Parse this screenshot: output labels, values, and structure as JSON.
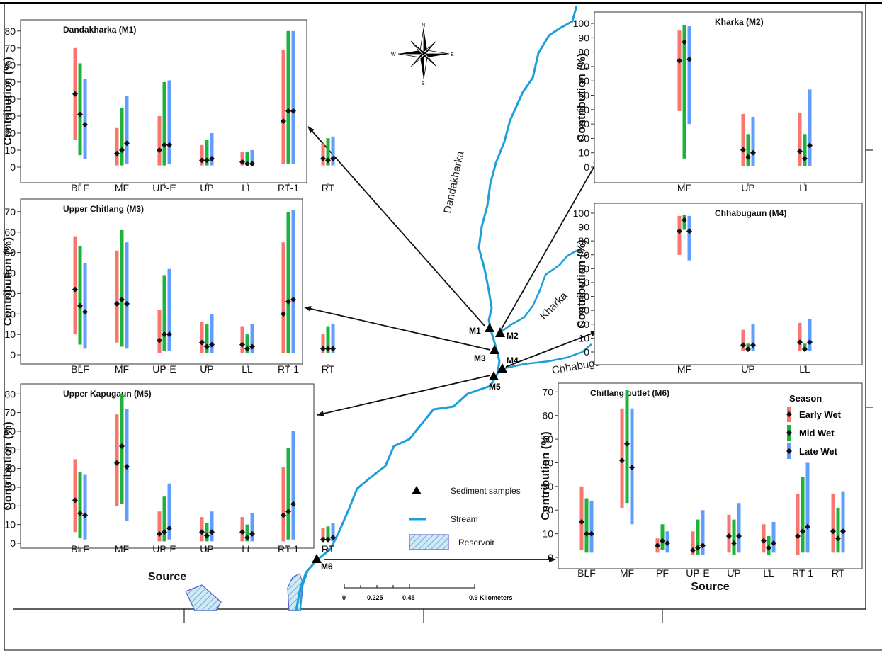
{
  "colors": {
    "early": "#F8766D",
    "mid": "#1DB33B",
    "late": "#619CFF",
    "stream": "#1A9FD9",
    "reservoir": "#5566CC",
    "point": "#111111"
  },
  "map": {
    "streams": [
      "Dandakharka",
      "Kharka",
      "Chhabugaun"
    ],
    "sites": [
      "M1",
      "M2",
      "M3",
      "M4",
      "M5",
      "M6"
    ],
    "compass": {
      "n": "N",
      "s": "S",
      "e": "E",
      "w": "W"
    },
    "scale": {
      "ticks": [
        "0",
        "0.225",
        "0.45",
        "0.9 Kilometers"
      ]
    },
    "legend": {
      "samples": "Sediment samples",
      "stream": "Stream",
      "reservoir": "Reservoir"
    }
  },
  "legend": {
    "title": "Season",
    "items": [
      "Early Wet",
      "Mid Wet",
      "Late Wet"
    ]
  },
  "chart_data": [
    {
      "id": "m1",
      "type": "bar-range",
      "title": "Dandakharka (M1)",
      "ylabel": "Contribution (%)",
      "xlabel": "",
      "ylim": [
        0,
        82
      ],
      "yticks": [
        0,
        10,
        20,
        30,
        40,
        50,
        60,
        70,
        80
      ],
      "categories": [
        "BLF",
        "MF",
        "UP-E",
        "UP",
        "LL",
        "RT-1",
        "RT"
      ],
      "series": [
        {
          "name": "Early Wet",
          "low": [
            16,
            1,
            1,
            1,
            1,
            2,
            1
          ],
          "high": [
            70,
            23,
            30,
            13,
            9,
            69,
            14
          ],
          "median": [
            43,
            8,
            10,
            4,
            3,
            27,
            5
          ]
        },
        {
          "name": "Mid Wet",
          "low": [
            7,
            1,
            1,
            1,
            1,
            2,
            1
          ],
          "high": [
            61,
            35,
            50,
            16,
            9,
            80,
            17
          ],
          "median": [
            31,
            10,
            13,
            4,
            2,
            33,
            4
          ]
        },
        {
          "name": "Late Wet",
          "low": [
            5,
            2,
            2,
            1,
            1,
            2,
            1
          ],
          "high": [
            52,
            42,
            51,
            20,
            10,
            80,
            18
          ],
          "median": [
            25,
            14,
            13,
            5,
            2,
            33,
            5
          ]
        }
      ]
    },
    {
      "id": "m2",
      "type": "bar-range",
      "title": "Kharka (M2)",
      "ylabel": "Contribution (%)",
      "xlabel": "",
      "ylim": [
        0,
        101
      ],
      "yticks": [
        0,
        10,
        20,
        30,
        40,
        50,
        60,
        70,
        80,
        90,
        100
      ],
      "categories": [
        "MF",
        "UP",
        "LL"
      ],
      "series": [
        {
          "name": "Early Wet",
          "low": [
            39,
            1,
            1
          ],
          "high": [
            95,
            37,
            38
          ],
          "median": [
            74,
            12,
            11
          ]
        },
        {
          "name": "Mid Wet",
          "low": [
            6,
            1,
            1
          ],
          "high": [
            99,
            23,
            23
          ],
          "median": [
            87,
            7,
            6
          ]
        },
        {
          "name": "Late Wet",
          "low": [
            30,
            1,
            1
          ],
          "high": [
            98,
            35,
            54
          ],
          "median": [
            75,
            10,
            15
          ]
        }
      ]
    },
    {
      "id": "m3",
      "type": "bar-range",
      "title": "Upper Chitlang (M3)",
      "ylabel": "Contribution (%)",
      "xlabel": "",
      "ylim": [
        0,
        71
      ],
      "yticks": [
        0,
        10,
        20,
        30,
        40,
        50,
        60,
        70
      ],
      "categories": [
        "BLF",
        "MF",
        "UP-E",
        "UP",
        "LL",
        "RT-1",
        "RT"
      ],
      "series": [
        {
          "name": "Early Wet",
          "low": [
            10,
            6,
            1,
            1,
            1,
            1,
            1
          ],
          "high": [
            58,
            51,
            22,
            16,
            14,
            55,
            10
          ],
          "median": [
            32,
            25,
            7,
            6,
            5,
            20,
            3
          ]
        },
        {
          "name": "Mid Wet",
          "low": [
            5,
            4,
            2,
            1,
            1,
            1,
            1
          ],
          "high": [
            53,
            61,
            39,
            15,
            10,
            70,
            14
          ],
          "median": [
            24,
            27,
            10,
            4,
            3,
            26,
            3
          ]
        },
        {
          "name": "Late Wet",
          "low": [
            3,
            3,
            2,
            1,
            1,
            1,
            1
          ],
          "high": [
            45,
            55,
            42,
            20,
            15,
            71,
            15
          ],
          "median": [
            21,
            25,
            10,
            5,
            4,
            27,
            3
          ]
        }
      ]
    },
    {
      "id": "m4",
      "type": "bar-range",
      "title": "Chhabugaun (M4)",
      "ylabel": "Contribution (%)",
      "xlabel": "",
      "ylim": [
        0,
        101
      ],
      "yticks": [
        0,
        10,
        20,
        30,
        40,
        50,
        60,
        70,
        80,
        90,
        100
      ],
      "categories": [
        "MF",
        "UP",
        "LL"
      ],
      "series": [
        {
          "name": "Early Wet",
          "low": [
            70,
            1,
            1
          ],
          "high": [
            98,
            16,
            21
          ],
          "median": [
            87,
            5,
            7
          ]
        },
        {
          "name": "Mid Wet",
          "low": [
            88,
            1,
            1
          ],
          "high": [
            99,
            6,
            6
          ],
          "median": [
            95,
            2,
            2
          ]
        },
        {
          "name": "Late Wet",
          "low": [
            66,
            1,
            1
          ],
          "high": [
            98,
            20,
            24
          ],
          "median": [
            87,
            5,
            7
          ]
        }
      ]
    },
    {
      "id": "m5",
      "type": "bar-range",
      "title": "Upper Kapugaun (M5)",
      "ylabel": "Contribution (%)",
      "xlabel": "Source",
      "ylim": [
        0,
        82
      ],
      "yticks": [
        0,
        10,
        20,
        30,
        40,
        50,
        60,
        70,
        80
      ],
      "categories": [
        "BLF",
        "MF",
        "UP-E",
        "UP",
        "LL",
        "RT-1",
        "RT"
      ],
      "series": [
        {
          "name": "Early Wet",
          "low": [
            6,
            20,
            1,
            1,
            1,
            1,
            1
          ],
          "high": [
            45,
            69,
            17,
            14,
            14,
            41,
            8
          ],
          "median": [
            23,
            43,
            5,
            6,
            6,
            15,
            2
          ]
        },
        {
          "name": "Mid Wet",
          "low": [
            3,
            21,
            1,
            1,
            1,
            2,
            1
          ],
          "high": [
            38,
            80,
            25,
            11,
            10,
            51,
            9
          ],
          "median": [
            16,
            52,
            6,
            4,
            3,
            17,
            2
          ]
        },
        {
          "name": "Late Wet",
          "low": [
            2,
            12,
            2,
            1,
            1,
            2,
            1
          ],
          "high": [
            37,
            72,
            32,
            17,
            16,
            60,
            11
          ],
          "median": [
            15,
            41,
            8,
            6,
            5,
            21,
            3
          ]
        }
      ]
    },
    {
      "id": "m6",
      "type": "bar-range",
      "title": "Chitlang  outlet (M6)",
      "ylabel": "Contribution (%)",
      "xlabel": "Source",
      "ylim": [
        0,
        71
      ],
      "yticks": [
        0,
        10,
        20,
        30,
        40,
        50,
        60,
        70
      ],
      "categories": [
        "BLF",
        "MF",
        "PF",
        "UP-E",
        "UP",
        "LL",
        "RT-1",
        "RT"
      ],
      "series": [
        {
          "name": "Early Wet",
          "low": [
            3,
            21,
            2,
            1,
            2,
            2,
            1,
            2
          ],
          "high": [
            30,
            63,
            8,
            11,
            18,
            14,
            27,
            27
          ],
          "median": [
            15,
            41,
            5,
            3,
            9,
            7,
            9,
            11
          ]
        },
        {
          "name": "Mid Wet",
          "low": [
            2,
            23,
            3,
            1,
            1,
            1,
            2,
            2
          ],
          "high": [
            25,
            71,
            14,
            16,
            16,
            9,
            34,
            21
          ],
          "median": [
            10,
            48,
            7,
            4,
            6,
            4,
            11,
            8
          ]
        },
        {
          "name": "Late Wet",
          "low": [
            2,
            14,
            2,
            1,
            2,
            2,
            2,
            2
          ],
          "high": [
            24,
            63,
            11,
            20,
            23,
            15,
            40,
            28
          ],
          "median": [
            10,
            38,
            6,
            5,
            9,
            6,
            13,
            11
          ]
        }
      ]
    }
  ]
}
